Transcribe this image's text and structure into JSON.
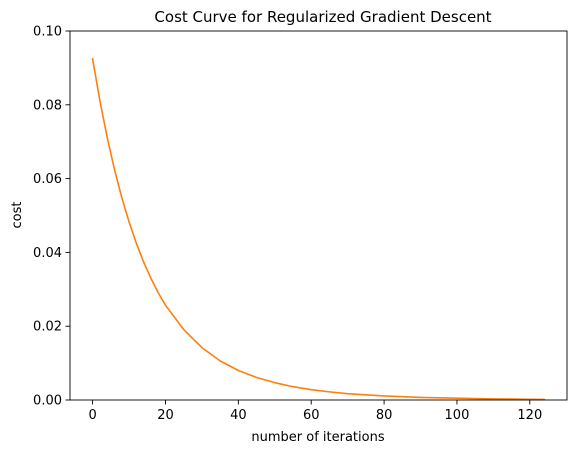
{
  "chart_data": {
    "type": "line",
    "title": "Cost Curve for Regularized Gradient Descent",
    "xlabel": "number of iterations",
    "ylabel": "cost",
    "xlim": [
      -6.2,
      130.2
    ],
    "ylim": [
      0,
      0.1
    ],
    "grid": false,
    "x_ticks": [
      0,
      20,
      40,
      60,
      80,
      100,
      120
    ],
    "x_tick_labels": [
      "0",
      "20",
      "40",
      "60",
      "80",
      "100",
      "120"
    ],
    "y_ticks": [
      0,
      0.02,
      0.04,
      0.06,
      0.08,
      0.1
    ],
    "y_tick_labels": [
      "0.00",
      "0.02",
      "0.04",
      "0.06",
      "0.08",
      "0.10"
    ],
    "series": [
      {
        "color": "#ff7f0e",
        "x": [
          0,
          2,
          4,
          6,
          8,
          10,
          12,
          14,
          16,
          18,
          20,
          25,
          30,
          35,
          40,
          45,
          50,
          55,
          60,
          65,
          70,
          75,
          80,
          85,
          90,
          95,
          100,
          105,
          110,
          115,
          120,
          124
        ],
        "y": [
          0.0925,
          0.0811,
          0.0712,
          0.0625,
          0.0549,
          0.0483,
          0.0425,
          0.0374,
          0.033,
          0.0291,
          0.0257,
          0.0191,
          0.0142,
          0.0106,
          0.008,
          0.0061,
          0.0047,
          0.0036,
          0.0028,
          0.0022,
          0.0017,
          0.0014,
          0.0011,
          0.0009,
          0.0007,
          0.0006,
          0.0005,
          0.0004,
          0.0003,
          0.00025,
          0.0002,
          0.00015
        ]
      }
    ]
  }
}
